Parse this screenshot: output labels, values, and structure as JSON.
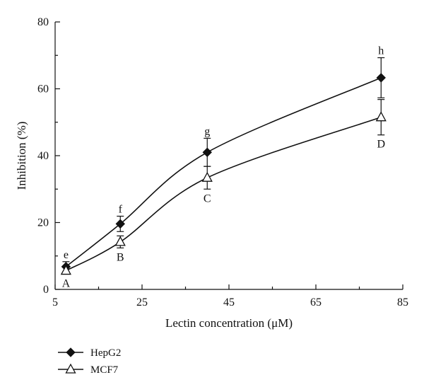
{
  "chart_data": {
    "type": "line",
    "xlabel": "Lectin concentration (μM)",
    "ylabel": "Inhibition (%)",
    "xlim": [
      5,
      85
    ],
    "ylim": [
      0,
      80
    ],
    "x_ticks": [
      5,
      25,
      45,
      65,
      85
    ],
    "y_ticks": [
      0,
      20,
      40,
      60,
      80
    ],
    "grid": false,
    "legend_position": "bottom-left",
    "series": [
      {
        "name": "HepG2",
        "marker": "filled-diamond",
        "x": [
          7.5,
          20,
          40,
          80
        ],
        "values": [
          6.8,
          19.6,
          41.0,
          63.3
        ],
        "error": [
          1.5,
          2.3,
          4.2,
          6.0
        ],
        "labels": [
          "e",
          "f",
          "g",
          "h"
        ]
      },
      {
        "name": "MCF7",
        "marker": "open-triangle",
        "x": [
          7.5,
          20,
          40,
          80
        ],
        "values": [
          5.6,
          14.2,
          33.4,
          51.5
        ],
        "error": [
          1.0,
          1.8,
          3.4,
          5.3
        ],
        "labels": [
          "A",
          "B",
          "C",
          "D"
        ]
      }
    ]
  }
}
